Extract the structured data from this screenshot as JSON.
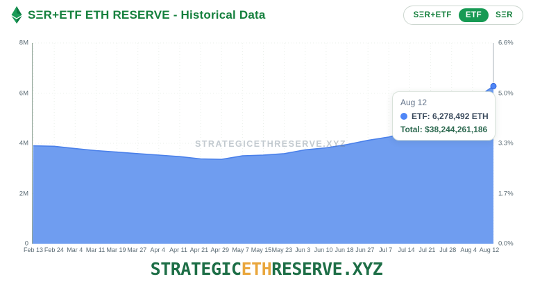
{
  "header": {
    "title": "SΞR+ETF ETH RESERVE - Historical Data",
    "logo": "ethereum-diamond",
    "toggle": {
      "options": [
        {
          "label": "SΞR+ETF",
          "selected": false
        },
        {
          "label": "ETF",
          "selected": true
        },
        {
          "label": "SΞR",
          "selected": false
        }
      ]
    }
  },
  "chart_data": {
    "type": "area",
    "title": "SΞR+ETF ETH RESERVE - Historical Data",
    "series_name": "ETF",
    "unit": "ETH",
    "categories": [
      "Feb 13",
      "Feb 24",
      "Mar 4",
      "Mar 11",
      "Mar 19",
      "Mar 27",
      "Apr 4",
      "Apr 11",
      "Apr 21",
      "Apr 29",
      "May 7",
      "May 15",
      "May 23",
      "Jun 3",
      "Jun 10",
      "Jun 18",
      "Jun 27",
      "Jul 7",
      "Jul 14",
      "Jul 21",
      "Jul 28",
      "Aug 4",
      "Aug 12"
    ],
    "values": [
      3900000,
      3880000,
      3790000,
      3710000,
      3650000,
      3590000,
      3530000,
      3470000,
      3380000,
      3360000,
      3500000,
      3530000,
      3590000,
      3740000,
      3820000,
      3950000,
      4120000,
      4250000,
      4480000,
      4800000,
      5250000,
      5700000,
      6278492
    ],
    "ylim": [
      0,
      8000000
    ],
    "y_ticks_left": [
      "0",
      "2M",
      "4M",
      "6M",
      "8M"
    ],
    "y_ticks_right": [
      "0.0%",
      "1.7%",
      "3.3%",
      "5.0%",
      "6.6%"
    ],
    "grid": true,
    "legend_position": "none",
    "last_point_marker": true,
    "colors": {
      "line": "#4a80ea",
      "fill": "#6f9df0",
      "marker": "#4f86f7",
      "grid": "#e9efe9",
      "axis": "#8fa396",
      "crosshair": "#a8b3ba"
    }
  },
  "tooltip": {
    "date": "Aug 12",
    "value_label": "ETF: 6,278,492 ETH",
    "total_label": "Total: $38,244,261,186"
  },
  "watermark": "STRATEGICETHRESERVE.XYZ",
  "footer": {
    "part1": "STRATEGIC",
    "part2": "ETH",
    "part3": "RESERVE.XYZ"
  }
}
